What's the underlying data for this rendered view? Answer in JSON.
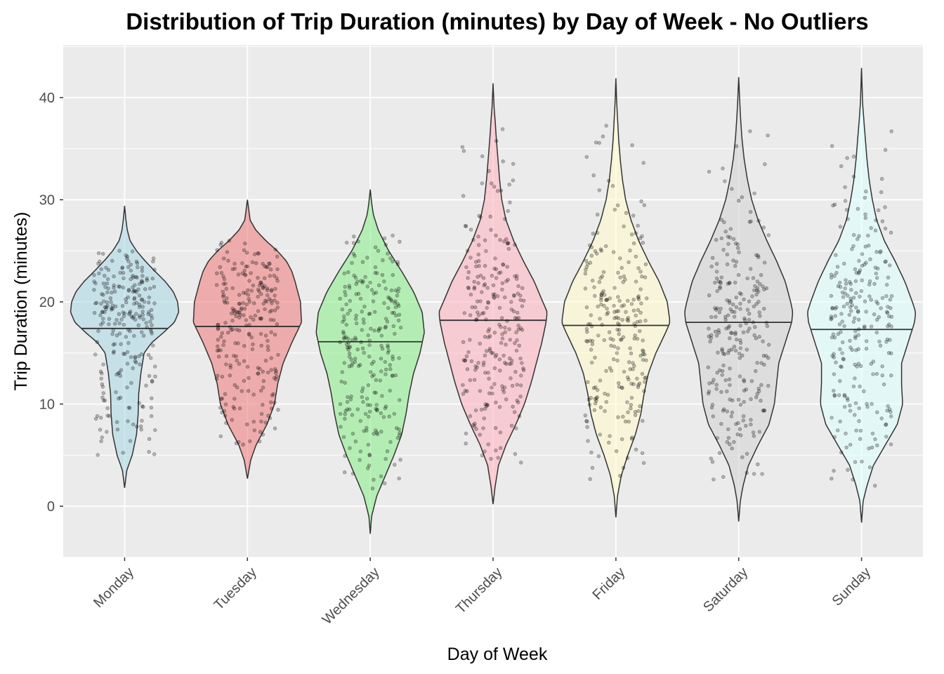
{
  "chart_data": {
    "type": "violin",
    "title": "Distribution of Trip Duration (minutes) by Day of Week - No Outliers",
    "xlabel": "Day of Week",
    "ylabel": "Trip Duration (minutes)",
    "ylim": [
      -5,
      45
    ],
    "yticks": [
      0,
      10,
      20,
      30,
      40
    ],
    "grid": true,
    "legend": "none",
    "categories": [
      "Monday",
      "Tuesday",
      "Wednesday",
      "Thursday",
      "Friday",
      "Saturday",
      "Sunday"
    ],
    "series": [
      {
        "category": "Monday",
        "color": "#add8e6",
        "median": 17.4,
        "min": 1.8,
        "max": 29.4,
        "lower_whisker": 3.5,
        "upper_whisker": 28,
        "density_profile": [
          [
            1.8,
            0.0
          ],
          [
            3.5,
            0.04
          ],
          [
            5,
            0.14
          ],
          [
            7,
            0.22
          ],
          [
            9,
            0.25
          ],
          [
            11,
            0.26
          ],
          [
            13,
            0.3
          ],
          [
            15,
            0.36
          ],
          [
            16,
            0.5
          ],
          [
            17,
            0.72
          ],
          [
            18,
            0.92
          ],
          [
            19,
            1.0
          ],
          [
            20,
            0.98
          ],
          [
            21,
            0.9
          ],
          [
            22,
            0.75
          ],
          [
            23,
            0.56
          ],
          [
            24,
            0.38
          ],
          [
            25,
            0.22
          ],
          [
            26,
            0.1
          ],
          [
            27,
            0.05
          ],
          [
            28,
            0.025
          ],
          [
            29.4,
            0.0
          ]
        ]
      },
      {
        "category": "Tuesday",
        "color": "#f08080",
        "median": 17.6,
        "min": 2.7,
        "max": 30.0,
        "lower_whisker": 4.5,
        "upper_whisker": 28.5,
        "density_profile": [
          [
            2.7,
            0.0
          ],
          [
            4.5,
            0.06
          ],
          [
            6,
            0.16
          ],
          [
            8,
            0.36
          ],
          [
            10,
            0.5
          ],
          [
            12,
            0.56
          ],
          [
            14,
            0.66
          ],
          [
            16,
            0.82
          ],
          [
            18,
            1.0
          ],
          [
            20,
            0.98
          ],
          [
            22,
            0.88
          ],
          [
            23,
            0.82
          ],
          [
            24,
            0.72
          ],
          [
            25,
            0.55
          ],
          [
            26,
            0.34
          ],
          [
            27,
            0.16
          ],
          [
            28,
            0.05
          ],
          [
            30,
            0.0
          ]
        ]
      },
      {
        "category": "Wednesday",
        "color": "#90ee90",
        "median": 16.1,
        "min": -2.7,
        "max": 31.0,
        "lower_whisker": -1,
        "upper_whisker": 29,
        "density_profile": [
          [
            -2.7,
            0.0
          ],
          [
            -1,
            0.025
          ],
          [
            1,
            0.12
          ],
          [
            3,
            0.28
          ],
          [
            5,
            0.44
          ],
          [
            7,
            0.58
          ],
          [
            9,
            0.66
          ],
          [
            11,
            0.72
          ],
          [
            13,
            0.8
          ],
          [
            15,
            0.92
          ],
          [
            17,
            1.0
          ],
          [
            19,
            0.96
          ],
          [
            21,
            0.8
          ],
          [
            23,
            0.58
          ],
          [
            25,
            0.34
          ],
          [
            27,
            0.15
          ],
          [
            28.5,
            0.06
          ],
          [
            29.5,
            0.03
          ],
          [
            31,
            0.0
          ]
        ]
      },
      {
        "category": "Thursday",
        "color": "#ffb6c1",
        "median": 18.2,
        "min": 0.2,
        "max": 41.4,
        "lower_whisker": 2,
        "upper_whisker": 40,
        "density_profile": [
          [
            0.2,
            0.0
          ],
          [
            2,
            0.04
          ],
          [
            4,
            0.1
          ],
          [
            6,
            0.24
          ],
          [
            8,
            0.42
          ],
          [
            10,
            0.58
          ],
          [
            12,
            0.7
          ],
          [
            14,
            0.8
          ],
          [
            16,
            0.9
          ],
          [
            18,
            0.98
          ],
          [
            19,
            1.0
          ],
          [
            20,
            0.92
          ],
          [
            22,
            0.76
          ],
          [
            24,
            0.56
          ],
          [
            26,
            0.38
          ],
          [
            28,
            0.24
          ],
          [
            30,
            0.16
          ],
          [
            32,
            0.12
          ],
          [
            34,
            0.09
          ],
          [
            36,
            0.06
          ],
          [
            38,
            0.035
          ],
          [
            39,
            0.02
          ],
          [
            41.4,
            0.0
          ]
        ]
      },
      {
        "category": "Friday",
        "color": "#fffacd",
        "median": 17.7,
        "min": -1.1,
        "max": 41.9,
        "lower_whisker": 1,
        "upper_whisker": 40,
        "density_profile": [
          [
            -1.1,
            0.0
          ],
          [
            1,
            0.03
          ],
          [
            3,
            0.1
          ],
          [
            5,
            0.22
          ],
          [
            7,
            0.36
          ],
          [
            9,
            0.46
          ],
          [
            11,
            0.52
          ],
          [
            13,
            0.6
          ],
          [
            15,
            0.74
          ],
          [
            17,
            0.92
          ],
          [
            18,
            1.0
          ],
          [
            20,
            0.95
          ],
          [
            22,
            0.8
          ],
          [
            24,
            0.6
          ],
          [
            26,
            0.42
          ],
          [
            28,
            0.28
          ],
          [
            30,
            0.18
          ],
          [
            32,
            0.12
          ],
          [
            34,
            0.08
          ],
          [
            36,
            0.05
          ],
          [
            38,
            0.03
          ],
          [
            39.5,
            0.015
          ],
          [
            41.9,
            0.0
          ]
        ]
      },
      {
        "category": "Saturday",
        "color": "#d3d3d3",
        "median": 18.0,
        "min": -1.5,
        "max": 42.0,
        "lower_whisker": 0.5,
        "upper_whisker": 40,
        "density_profile": [
          [
            -1.5,
            0.0
          ],
          [
            0.5,
            0.03
          ],
          [
            2,
            0.08
          ],
          [
            4,
            0.18
          ],
          [
            6,
            0.36
          ],
          [
            8,
            0.56
          ],
          [
            10,
            0.66
          ],
          [
            12,
            0.7
          ],
          [
            14,
            0.74
          ],
          [
            16,
            0.86
          ],
          [
            18,
            0.98
          ],
          [
            19,
            1.0
          ],
          [
            20,
            0.96
          ],
          [
            22,
            0.86
          ],
          [
            24,
            0.7
          ],
          [
            26,
            0.52
          ],
          [
            28,
            0.36
          ],
          [
            30,
            0.24
          ],
          [
            32,
            0.16
          ],
          [
            34,
            0.1
          ],
          [
            36,
            0.06
          ],
          [
            38,
            0.035
          ],
          [
            39.5,
            0.02
          ],
          [
            42,
            0.0
          ]
        ]
      },
      {
        "category": "Sunday",
        "color": "#e0ffff",
        "median": 17.3,
        "min": -1.6,
        "max": 42.9,
        "lower_whisker": 0.5,
        "upper_whisker": 40,
        "density_profile": [
          [
            -1.6,
            0.0
          ],
          [
            0.5,
            0.03
          ],
          [
            2,
            0.1
          ],
          [
            4,
            0.22
          ],
          [
            6,
            0.44
          ],
          [
            8,
            0.66
          ],
          [
            10,
            0.76
          ],
          [
            12,
            0.74
          ],
          [
            14,
            0.74
          ],
          [
            16,
            0.86
          ],
          [
            18,
            0.98
          ],
          [
            19,
            1.0
          ],
          [
            20,
            0.94
          ],
          [
            22,
            0.8
          ],
          [
            24,
            0.62
          ],
          [
            26,
            0.42
          ],
          [
            28,
            0.28
          ],
          [
            30,
            0.2
          ],
          [
            32,
            0.14
          ],
          [
            34,
            0.1
          ],
          [
            36,
            0.07
          ],
          [
            38,
            0.04
          ],
          [
            39.5,
            0.02
          ],
          [
            42.9,
            0.0
          ]
        ]
      }
    ],
    "jitter_points": {
      "per_group": 250,
      "color": "#000000",
      "opacity": 0.25
    }
  },
  "style": {
    "panel_background": "#ebebeb",
    "grid_color": "#ffffff",
    "violin_outline": "#333333",
    "title_color": "#000000",
    "tick_color": "#4d4d4d"
  }
}
